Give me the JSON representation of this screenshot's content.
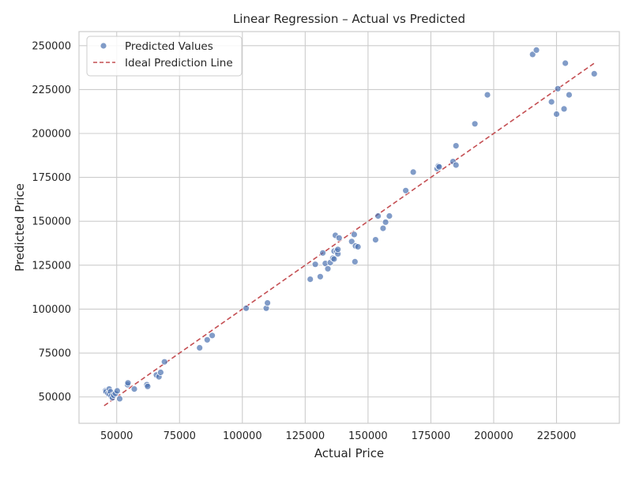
{
  "chart_data": {
    "type": "scatter",
    "title": "Linear Regression – Actual vs Predicted",
    "xlabel": "Actual Price",
    "ylabel": "Predicted Price",
    "xlim": [
      35000,
      250000
    ],
    "ylim": [
      35000,
      258000
    ],
    "xticks": [
      50000,
      75000,
      100000,
      125000,
      150000,
      175000,
      200000,
      225000
    ],
    "yticks": [
      50000,
      75000,
      100000,
      125000,
      150000,
      175000,
      200000,
      225000,
      250000
    ],
    "xtick_labels": [
      "50000",
      "75000",
      "100000",
      "125000",
      "150000",
      "175000",
      "200000",
      "225000"
    ],
    "ytick_labels": [
      "50000",
      "75000",
      "100000",
      "125000",
      "150000",
      "175000",
      "200000",
      "225000",
      "250000"
    ],
    "grid": true,
    "legend": {
      "position": "top-left",
      "entries": [
        "Predicted Values",
        "Ideal Prediction Line"
      ]
    },
    "colors": {
      "points": "#4c72b0",
      "ideal_line": "#c44e52",
      "grid": "#cccccc",
      "axes": "#cccccc"
    },
    "series": [
      {
        "name": "Predicted Values",
        "type": "scatter",
        "points": [
          [
            45500,
            53500
          ],
          [
            45800,
            53000
          ],
          [
            46500,
            52000
          ],
          [
            47000,
            54500
          ],
          [
            47000,
            51500
          ],
          [
            47500,
            53000
          ],
          [
            47800,
            50500
          ],
          [
            48300,
            49500
          ],
          [
            48800,
            51000
          ],
          [
            49500,
            52000
          ],
          [
            50200,
            53500
          ],
          [
            51200,
            49000
          ],
          [
            54300,
            57000
          ],
          [
            54500,
            58000
          ],
          [
            57000,
            54500
          ],
          [
            62000,
            57000
          ],
          [
            62300,
            56000
          ],
          [
            65800,
            62500
          ],
          [
            66800,
            61500
          ],
          [
            67500,
            64000
          ],
          [
            69000,
            70000
          ],
          [
            83000,
            78000
          ],
          [
            86000,
            82500
          ],
          [
            88000,
            85000
          ],
          [
            101500,
            100500
          ],
          [
            109500,
            100500
          ],
          [
            110000,
            103500
          ],
          [
            127000,
            117000
          ],
          [
            129000,
            125500
          ],
          [
            131000,
            118500
          ],
          [
            132000,
            132000
          ],
          [
            133000,
            126000
          ],
          [
            134000,
            123000
          ],
          [
            135000,
            126500
          ],
          [
            136000,
            129000
          ],
          [
            136500,
            133000
          ],
          [
            136500,
            128500
          ],
          [
            137000,
            142000
          ],
          [
            137500,
            133000
          ],
          [
            138000,
            131500
          ],
          [
            138000,
            134000
          ],
          [
            138500,
            140500
          ],
          [
            143500,
            138500
          ],
          [
            144500,
            142500
          ],
          [
            144800,
            127000
          ],
          [
            145000,
            136000
          ],
          [
            146000,
            135500
          ],
          [
            153000,
            139500
          ],
          [
            154000,
            153000
          ],
          [
            156000,
            146000
          ],
          [
            157000,
            149500
          ],
          [
            158500,
            153000
          ],
          [
            165000,
            167500
          ],
          [
            168000,
            178000
          ],
          [
            177500,
            180000
          ],
          [
            178000,
            181500
          ],
          [
            178300,
            181000
          ],
          [
            183800,
            184000
          ],
          [
            185000,
            182000
          ],
          [
            185000,
            193000
          ],
          [
            192500,
            205500
          ],
          [
            197500,
            222000
          ],
          [
            215500,
            245000
          ],
          [
            217000,
            247500
          ],
          [
            223000,
            218000
          ],
          [
            225000,
            211000
          ],
          [
            225500,
            225500
          ],
          [
            228000,
            214000
          ],
          [
            228500,
            240000
          ],
          [
            230000,
            222000
          ],
          [
            240000,
            234000
          ]
        ]
      },
      {
        "name": "Ideal Prediction Line",
        "type": "line",
        "points": [
          [
            45000,
            45000
          ],
          [
            240000,
            240000
          ]
        ]
      }
    ]
  }
}
